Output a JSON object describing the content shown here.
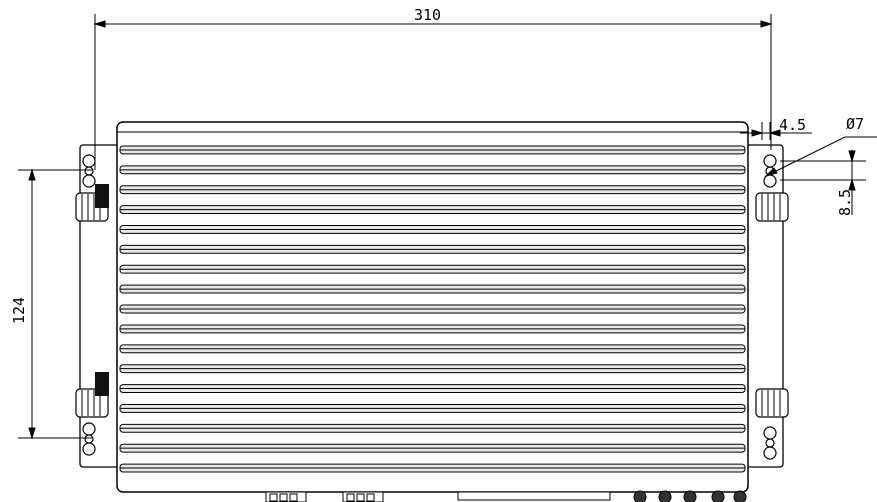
{
  "dimensions": {
    "overall_width": "310",
    "mount_spacing": "124",
    "slot_offset": "4.5",
    "slot_height": "8.5",
    "hole_diameter": "Ø7"
  },
  "fins": {
    "count": 17
  },
  "colors": {
    "line": "#000000",
    "background": "#ffffff",
    "fin_fill": "#e9e9e9",
    "bumper_fill": "#222222"
  }
}
